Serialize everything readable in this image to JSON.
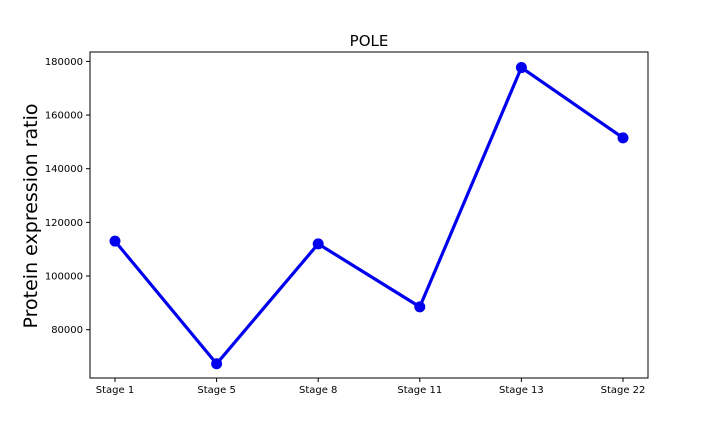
{
  "chart_data": {
    "type": "line",
    "title": "POLE",
    "xlabel": "",
    "ylabel": "Protein expression ratio",
    "categories": [
      "Stage 1",
      "Stage 5",
      "Stage 8",
      "Stage 11",
      "Stage 13",
      "Stage 22"
    ],
    "series": [
      {
        "values": [
          113000,
          67300,
          112000,
          88500,
          177700,
          151500
        ]
      }
    ],
    "ylim": [
      62000,
      183500
    ],
    "yticks": [
      80000,
      100000,
      120000,
      140000,
      160000,
      180000
    ],
    "yticklabels": [
      "80000",
      "100000",
      "120000",
      "140000",
      "160000",
      "180000"
    ],
    "grid": false,
    "legend": "none",
    "colors": {
      "line": "#0000ee",
      "marker": "#0000ee"
    }
  }
}
